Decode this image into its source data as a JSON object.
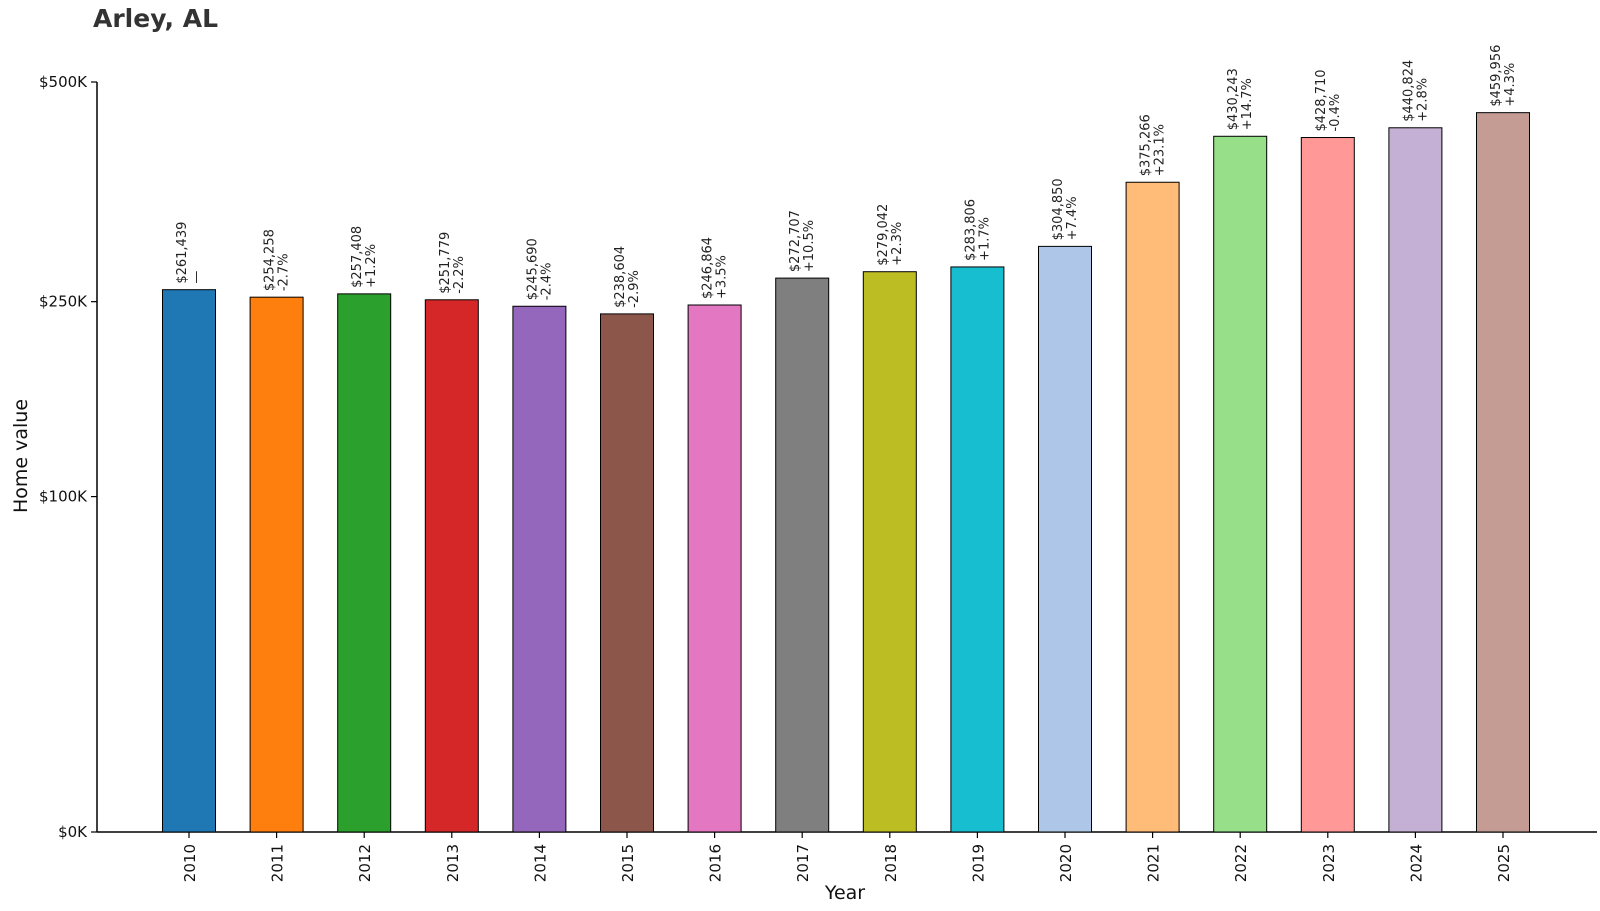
{
  "chart_data": {
    "type": "bar",
    "title": "Arley, AL",
    "xlabel": "Year",
    "ylabel": "Home value",
    "ylim": [
      0,
      500000
    ],
    "y_scale": "sqrt",
    "yticks": [
      0,
      100000,
      250000,
      500000
    ],
    "ytick_labels": [
      "$0K",
      "$100K",
      "$250K",
      "$500K"
    ],
    "grid": false,
    "legend": "none",
    "categories": [
      "2010",
      "2011",
      "2012",
      "2013",
      "2014",
      "2015",
      "2016",
      "2017",
      "2018",
      "2019",
      "2020",
      "2021",
      "2022",
      "2023",
      "2024",
      "2025"
    ],
    "values": [
      261439,
      254258,
      257408,
      251779,
      245690,
      238604,
      246864,
      272707,
      279042,
      283806,
      304850,
      375266,
      430243,
      428710,
      440824,
      459956
    ],
    "value_labels": [
      "$261,439",
      "$254,258",
      "$257,408",
      "$251,779",
      "$245,690",
      "$238,604",
      "$246,864",
      "$272,707",
      "$279,042",
      "$283,806",
      "$304,850",
      "$375,266",
      "$430,243",
      "$428,710",
      "$440,824",
      "$459,956"
    ],
    "change_labels": [
      "—",
      "-2.7%",
      "+1.2%",
      "-2.2%",
      "-2.4%",
      "-2.9%",
      "+3.5%",
      "+10.5%",
      "+2.3%",
      "+1.7%",
      "+7.4%",
      "+23.1%",
      "+14.7%",
      "-0.4%",
      "+2.8%",
      "+4.3%"
    ],
    "colors": [
      "#1f77b4",
      "#ff7f0e",
      "#2ca02c",
      "#d62728",
      "#9467bd",
      "#8c564b",
      "#e377c2",
      "#7f7f7f",
      "#bcbd22",
      "#17becf",
      "#aec7e8",
      "#ffbb78",
      "#98df8a",
      "#ff9896",
      "#c5b0d5",
      "#c49c94"
    ]
  }
}
